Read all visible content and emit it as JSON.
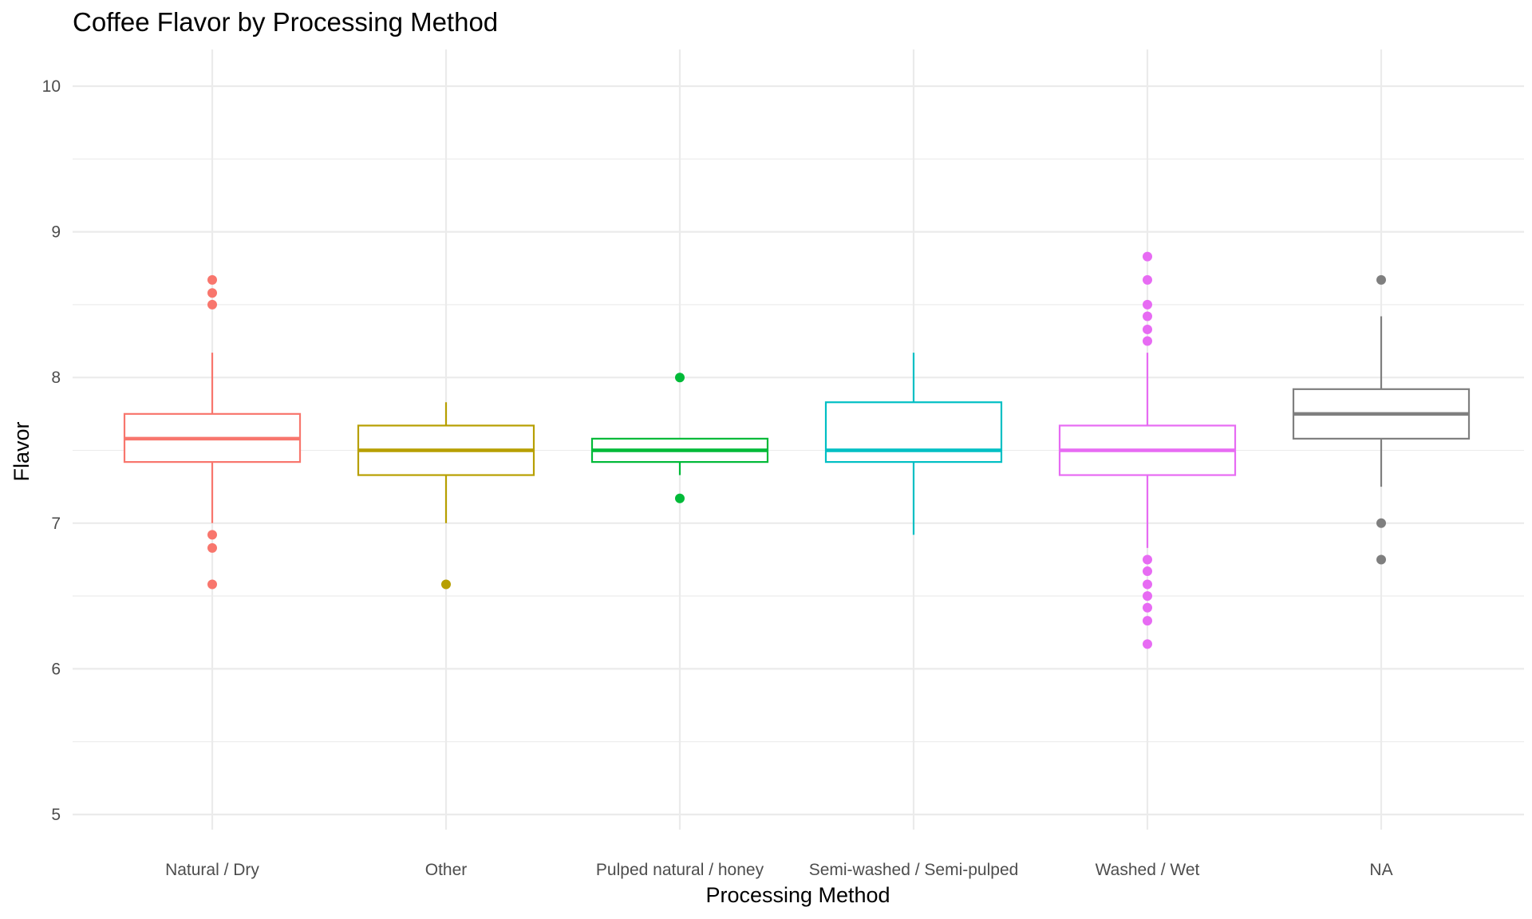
{
  "chart_data": {
    "type": "box",
    "title": "Coffee Flavor by Processing Method",
    "xlabel": "Processing Method",
    "ylabel": "Flavor",
    "ylim": [
      4.8,
      10.25
    ],
    "yticks": [
      5,
      6,
      7,
      8,
      9,
      10
    ],
    "grid": true,
    "legend": "none",
    "categories": [
      "Natural / Dry",
      "Other",
      "Pulped natural / honey",
      "Semi-washed / Semi-pulped",
      "Washed / Wet",
      "NA"
    ],
    "series": [
      {
        "category": "Natural / Dry",
        "color": "#F8766D",
        "whisker_low": 7.0,
        "q1": 7.42,
        "median": 7.58,
        "q3": 7.75,
        "whisker_high": 8.17,
        "outliers": [
          8.67,
          8.58,
          8.5,
          6.92,
          6.83,
          6.58
        ]
      },
      {
        "category": "Other",
        "color": "#B79F00",
        "whisker_low": 7.0,
        "q1": 7.33,
        "median": 7.5,
        "q3": 7.67,
        "whisker_high": 7.83,
        "outliers": [
          6.58
        ]
      },
      {
        "category": "Pulped natural / honey",
        "color": "#00BA38",
        "whisker_low": 7.33,
        "q1": 7.42,
        "median": 7.5,
        "q3": 7.58,
        "whisker_high": 7.58,
        "outliers": [
          8.0,
          7.17
        ]
      },
      {
        "category": "Semi-washed / Semi-pulped",
        "color": "#00BFC4",
        "whisker_low": 6.92,
        "q1": 7.42,
        "median": 7.5,
        "q3": 7.83,
        "whisker_high": 8.17,
        "outliers": []
      },
      {
        "category": "Washed / Wet",
        "color": "#E76BF3",
        "whisker_low": 6.83,
        "q1": 7.33,
        "median": 7.5,
        "q3": 7.67,
        "whisker_high": 8.17,
        "outliers": [
          8.83,
          8.67,
          8.5,
          8.42,
          8.33,
          8.25,
          6.75,
          6.67,
          6.58,
          6.5,
          6.42,
          6.33,
          6.17
        ]
      },
      {
        "category": "NA",
        "color": "#7F7F7F",
        "whisker_low": 7.25,
        "q1": 7.58,
        "median": 7.75,
        "q3": 7.92,
        "whisker_high": 8.42,
        "outliers": [
          8.67,
          7.0,
          6.75
        ]
      }
    ]
  }
}
